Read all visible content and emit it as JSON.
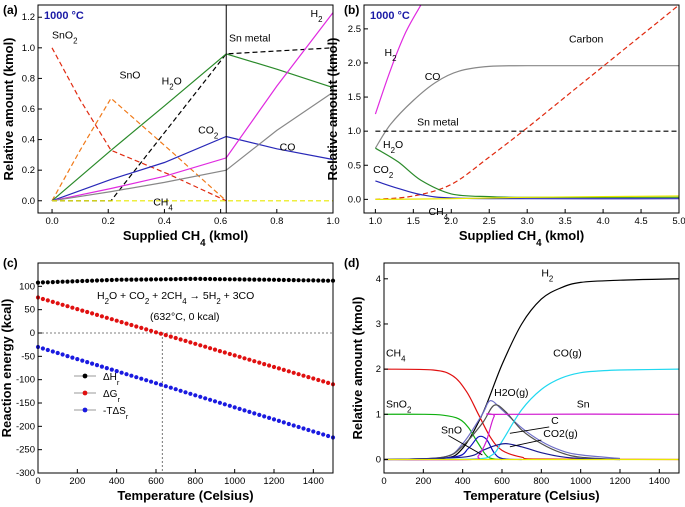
{
  "chart_data": [
    {
      "panel": "(a)",
      "type": "line",
      "badge": "1000 °C",
      "xlabel": "Supplied CH4 (kmol)",
      "ylabel": "Relative amount (kmol)",
      "xlim": [
        -0.05,
        1.0
      ],
      "ylim": [
        -0.08,
        1.28
      ],
      "xticks": [
        0.0,
        0.2,
        0.4,
        0.6,
        0.8,
        1.0
      ],
      "xtick_labels": [
        "0.0",
        "0.2",
        "0.4",
        "0.6",
        "0.8",
        "1.0"
      ],
      "yticks": [
        0.0,
        0.2,
        0.4,
        0.6,
        0.8,
        1.0,
        1.2
      ],
      "ytick_labels": [
        "0.0",
        "0.2",
        "0.4",
        "0.6",
        "0.8",
        "1.0",
        "1.2"
      ],
      "vline_x": 0.62,
      "series": [
        {
          "name": "SnO2",
          "color": "#e02a10",
          "dash": "5,3",
          "x": [
            0,
            0.1,
            0.21,
            0.42,
            0.62
          ],
          "y": [
            1.0,
            0.66,
            0.33,
            0.17,
            0.0
          ]
        },
        {
          "name": "SnO",
          "color": "#f07a1a",
          "dash": "5,3",
          "x": [
            0,
            0.1,
            0.21,
            0.42,
            0.62
          ],
          "y": [
            0.0,
            0.33,
            0.67,
            0.33,
            0.0
          ]
        },
        {
          "name": "Sn metal",
          "color": "#000000",
          "dash": "5,3",
          "x": [
            0,
            0.21,
            0.62,
            1.0
          ],
          "y": [
            0.0,
            0.0,
            0.96,
            1.0
          ]
        },
        {
          "name": "H2O",
          "color": "#2a8a2a",
          "dash": "",
          "x": [
            0,
            0.21,
            0.4,
            0.62,
            0.8,
            1.0
          ],
          "y": [
            0.0,
            0.33,
            0.62,
            0.96,
            0.86,
            0.74
          ]
        },
        {
          "name": "CO2",
          "color": "#2828b8",
          "dash": "",
          "x": [
            0,
            0.21,
            0.4,
            0.62,
            0.8,
            1.0
          ],
          "y": [
            0.0,
            0.14,
            0.25,
            0.42,
            0.34,
            0.27
          ]
        },
        {
          "name": "H2",
          "color": "#e02ae0",
          "dash": "",
          "x": [
            0,
            0.21,
            0.4,
            0.62,
            0.8,
            1.0
          ],
          "y": [
            0.0,
            0.08,
            0.16,
            0.28,
            0.75,
            1.23
          ]
        },
        {
          "name": "CO",
          "color": "#888888",
          "dash": "",
          "x": [
            0,
            0.21,
            0.4,
            0.62,
            0.8,
            1.0
          ],
          "y": [
            0.0,
            0.06,
            0.12,
            0.2,
            0.46,
            0.71
          ]
        },
        {
          "name": "CH4",
          "color": "#e8e800",
          "dash": "5,3",
          "x": [
            0,
            1.0
          ],
          "y": [
            0.0,
            0.0
          ]
        }
      ],
      "labels": [
        {
          "text": "SnO2",
          "sub": "2",
          "x": 0.0,
          "y": 1.06
        },
        {
          "text": "SnO",
          "x": 0.24,
          "y": 0.8
        },
        {
          "text": "H2O",
          "sub": "2",
          "x": 0.39,
          "y": 0.76
        },
        {
          "text": "Sn metal",
          "x": 0.63,
          "y": 1.04
        },
        {
          "text": "CO2",
          "sub": "2",
          "x": 0.52,
          "y": 0.44
        },
        {
          "text": "CO",
          "x": 0.81,
          "y": 0.33
        },
        {
          "text": "H2",
          "sub": "2",
          "x": 0.92,
          "y": 1.2
        },
        {
          "text": "CH4",
          "sub": "4",
          "x": 0.36,
          "y": -0.03
        }
      ]
    },
    {
      "panel": "(b)",
      "type": "line",
      "badge": "1000 °C",
      "xlabel": "Supplied CH4 (kmol)",
      "ylabel": "Relative amount (kmol)",
      "xlim": [
        0.85,
        5.0
      ],
      "ylim": [
        -0.2,
        2.85
      ],
      "xticks": [
        1.0,
        1.5,
        2.0,
        2.5,
        3.0,
        3.5,
        4.0,
        4.5,
        5.0
      ],
      "xtick_labels": [
        "1.0",
        "1.5",
        "2.0",
        "2.5",
        "3.0",
        "3.5",
        "4.0",
        "4.5",
        "5.0"
      ],
      "yticks": [
        0.0,
        0.5,
        1.0,
        1.5,
        2.0,
        2.5
      ],
      "ytick_labels": [
        "0.0",
        "0.5",
        "1.0",
        "1.5",
        "2.0",
        "2.5"
      ],
      "series": [
        {
          "name": "H2",
          "color": "#e02ae0",
          "dash": "",
          "x": [
            1.0,
            1.2,
            1.4,
            1.6
          ],
          "y": [
            1.25,
            1.9,
            2.45,
            2.85
          ]
        },
        {
          "name": "CO",
          "color": "#888888",
          "dash": "",
          "x": [
            1.0,
            1.2,
            1.5,
            1.8,
            2.1,
            2.5,
            3.0,
            4.0,
            5.0
          ],
          "y": [
            0.75,
            1.1,
            1.45,
            1.72,
            1.88,
            1.95,
            1.96,
            1.96,
            1.96
          ]
        },
        {
          "name": "Sn metal",
          "color": "#000000",
          "dash": "5,3",
          "x": [
            1.0,
            5.0
          ],
          "y": [
            1.0,
            1.0
          ]
        },
        {
          "name": "Carbon",
          "color": "#e02a10",
          "dash": "5,3",
          "x": [
            1.0,
            1.5,
            2.0,
            2.5,
            3.0,
            3.5,
            4.0,
            4.5,
            5.0
          ],
          "y": [
            0.0,
            0.05,
            0.22,
            0.62,
            1.05,
            1.5,
            1.95,
            2.4,
            2.85
          ]
        },
        {
          "name": "H2O",
          "color": "#2a8a2a",
          "dash": "",
          "x": [
            1.0,
            1.3,
            1.6,
            2.0,
            2.5,
            3.0,
            5.0
          ],
          "y": [
            0.75,
            0.55,
            0.28,
            0.08,
            0.04,
            0.03,
            0.03
          ]
        },
        {
          "name": "CO2",
          "color": "#2828b8",
          "dash": "",
          "x": [
            1.0,
            1.3,
            1.6,
            2.0,
            3.0,
            5.0
          ],
          "y": [
            0.27,
            0.16,
            0.07,
            0.02,
            0.01,
            0.01
          ]
        },
        {
          "name": "CH4",
          "color": "#e8e800",
          "dash": "",
          "x": [
            1.0,
            2.0,
            3.0,
            4.0,
            5.0
          ],
          "y": [
            0.0,
            0.01,
            0.03,
            0.04,
            0.05
          ]
        }
      ],
      "labels": [
        {
          "text": "H2",
          "sub": "2",
          "x": 1.12,
          "y": 2.1
        },
        {
          "text": "CO",
          "x": 1.65,
          "y": 1.75
        },
        {
          "text": "Carbon",
          "x": 3.55,
          "y": 2.3
        },
        {
          "text": "Sn metal",
          "x": 1.55,
          "y": 1.08
        },
        {
          "text": "H2O",
          "sub": "2",
          "x": 1.1,
          "y": 0.75
        },
        {
          "text": "CO2",
          "sub": "2",
          "x": 0.97,
          "y": 0.39
        },
        {
          "text": "CH4",
          "sub": "4",
          "x": 1.7,
          "y": -0.23
        }
      ]
    },
    {
      "panel": "(c)",
      "type": "scatter",
      "xlabel": "Temperature (Celsius)",
      "ylabel": "Reaction energy (kcal)",
      "xlim": [
        0,
        1500
      ],
      "ylim": [
        -300,
        150
      ],
      "xticks": [
        0,
        200,
        400,
        600,
        800,
        1000,
        1200,
        1400
      ],
      "xtick_labels": [
        "0",
        "200",
        "400",
        "600",
        "800",
        "1000",
        "1200",
        "1400"
      ],
      "yticks": [
        -300,
        -250,
        -200,
        -150,
        -100,
        -50,
        0,
        50,
        100
      ],
      "ytick_labels": [
        "-300",
        "-250",
        "-200",
        "-150",
        "-100",
        "-50",
        "0",
        "50",
        "100"
      ],
      "equation": "H2O + CO2 + 2CH4 → 5H2 + 3CO",
      "crossing_label": "(632°C, 0 kcal)",
      "crossing": {
        "x": 632,
        "y": 0
      },
      "series": [
        {
          "name": "ΔHr",
          "color": "#000000",
          "x": [
            0,
            1500
          ],
          "y": [
            108,
            112
          ],
          "curve": [
            [
              0,
              108
            ],
            [
              400,
              114
            ],
            [
              800,
              116
            ],
            [
              1200,
              114
            ],
            [
              1500,
              112
            ]
          ]
        },
        {
          "name": "ΔGr",
          "color": "#e01010",
          "x": [
            0,
            1500
          ],
          "y": [
            76,
            -110
          ]
        },
        {
          "name": "-TΔSr",
          "color": "#1a1ae0",
          "x": [
            0,
            1500
          ],
          "y": [
            -30,
            -224
          ]
        }
      ],
      "legend_position": "bottom-left"
    },
    {
      "panel": "(d)",
      "type": "line",
      "xlabel": "Temperature (Celsius)",
      "ylabel": "Relative amount (kmol)",
      "xlim": [
        0,
        1500
      ],
      "ylim": [
        -0.3,
        4.35
      ],
      "xticks": [
        0,
        200,
        400,
        600,
        800,
        1000,
        1200,
        1400
      ],
      "xtick_labels": [
        "0",
        "200",
        "400",
        "600",
        "800",
        "1000",
        "1200",
        "1400"
      ],
      "yticks": [
        0,
        1,
        2,
        3,
        4
      ],
      "ytick_labels": [
        "0",
        "1",
        "2",
        "3",
        "4"
      ],
      "series": [
        {
          "name": "H2",
          "color": "#000000",
          "x": [
            0,
            300,
            400,
            500,
            600,
            700,
            800,
            900,
            1000,
            1200,
            1500
          ],
          "y": [
            0,
            0.02,
            0.25,
            1.0,
            2.1,
            3.0,
            3.55,
            3.8,
            3.92,
            3.97,
            4.0
          ]
        },
        {
          "name": "CH4",
          "color": "#e01010",
          "x": [
            0,
            250,
            350,
            420,
            480,
            540,
            600,
            700,
            800,
            1500
          ],
          "y": [
            2.0,
            1.98,
            1.85,
            1.5,
            1.0,
            0.5,
            0.2,
            0.05,
            0.01,
            0
          ]
        },
        {
          "name": "SnO2",
          "color": "#10b010",
          "x": [
            0,
            200,
            300,
            380,
            430,
            480,
            530,
            600
          ],
          "y": [
            1.0,
            1.0,
            0.98,
            0.9,
            0.7,
            0.35,
            0.05,
            0
          ]
        },
        {
          "name": "SnO",
          "color": "#1010c0",
          "x": [
            0,
            350,
            430,
            480,
            520,
            560,
            600,
            700
          ],
          "y": [
            0,
            0.05,
            0.25,
            0.5,
            0.45,
            0.15,
            0.02,
            0
          ]
        },
        {
          "name": "H2O(g)",
          "color": "#7070c8",
          "x": [
            0,
            300,
            400,
            500,
            540,
            600,
            700,
            800,
            900,
            1000,
            1200
          ],
          "y": [
            0,
            0.05,
            0.35,
            1.0,
            1.3,
            1.1,
            0.7,
            0.4,
            0.2,
            0.1,
            0.02
          ]
        },
        {
          "name": "C",
          "color": "#505050",
          "x": [
            0,
            300,
            400,
            500,
            560,
            620,
            700,
            800,
            900,
            1000,
            1200
          ],
          "y": [
            0,
            0.05,
            0.3,
            0.8,
            1.2,
            1.05,
            0.65,
            0.35,
            0.15,
            0.05,
            0
          ]
        },
        {
          "name": "CO(g)",
          "color": "#20d8f0",
          "x": [
            0,
            450,
            550,
            600,
            700,
            800,
            900,
            1000,
            1100,
            1200,
            1500
          ],
          "y": [
            0,
            0.01,
            0.1,
            0.4,
            1.1,
            1.55,
            1.8,
            1.92,
            1.96,
            1.98,
            2.0
          ]
        },
        {
          "name": "CO2(g)",
          "color": "#1a1a90",
          "x": [
            0,
            400,
            500,
            560,
            620,
            700,
            800,
            900,
            1000,
            1200
          ],
          "y": [
            0,
            0.05,
            0.2,
            0.3,
            0.35,
            0.28,
            0.15,
            0.06,
            0.02,
            0
          ]
        },
        {
          "name": "Sn",
          "color": "#d01ad0",
          "x": [
            0,
            440,
            480,
            520,
            560,
            600,
            1500
          ],
          "y": [
            0,
            0.0,
            0.08,
            0.4,
            0.95,
            1.0,
            1.0
          ]
        },
        {
          "name": "baseline",
          "color": "#e8e800",
          "x": [
            0,
            1500
          ],
          "y": [
            0,
            0
          ]
        }
      ],
      "labels": [
        {
          "text": "H2",
          "sub": "2",
          "x": 800,
          "y": 4.05
        },
        {
          "text": "CH4",
          "sub": "4",
          "x": 10,
          "y": 2.28
        },
        {
          "text": "CO(g)",
          "x": 860,
          "y": 2.28
        },
        {
          "text": "SnO2",
          "sub": "2",
          "x": 10,
          "y": 1.15
        },
        {
          "text": "H2O(g)",
          "x": 560,
          "y": 1.4
        },
        {
          "text": "Sn",
          "x": 980,
          "y": 1.15
        },
        {
          "text": "C",
          "x": 850,
          "y": 0.78
        },
        {
          "text": "SnO",
          "x": 290,
          "y": 0.58
        },
        {
          "text": "CO2(g)",
          "x": 810,
          "y": 0.5
        }
      ]
    }
  ]
}
